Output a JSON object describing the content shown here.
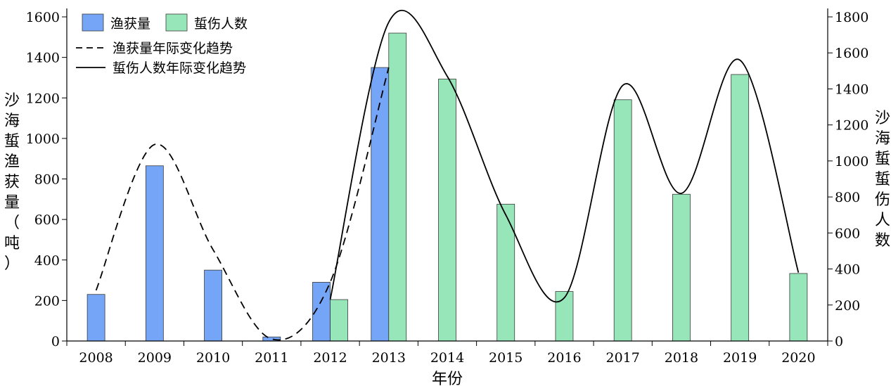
{
  "chart_data": {
    "type": "bar",
    "categories": [
      "2008",
      "2009",
      "2010",
      "2011",
      "2012",
      "2013",
      "2014",
      "2015",
      "2016",
      "2017",
      "2018",
      "2019",
      "2020"
    ],
    "xlabel": "年份",
    "ylabel_left": "沙海蜇渔获量（吨）",
    "ylabel_right": "沙海蜇蜇伤人数",
    "ylim_left": [
      0,
      1600
    ],
    "ylim_right": [
      0,
      1800
    ],
    "yticks_left": [
      0,
      200,
      400,
      600,
      800,
      1000,
      1200,
      1400,
      1600
    ],
    "yticks_right": [
      0,
      200,
      400,
      600,
      800,
      1000,
      1200,
      1400,
      1600,
      1800
    ],
    "grid": false,
    "legend_position": "top-left",
    "series": [
      {
        "name": "渔获量",
        "axis": "left",
        "color": "#74a5f7",
        "values": [
          230,
          865,
          350,
          20,
          290,
          1350,
          null,
          null,
          null,
          null,
          null,
          null,
          null
        ]
      },
      {
        "name": "蜇伤人数",
        "axis": "right",
        "color": "#97e6b9",
        "values": [
          null,
          null,
          null,
          null,
          230,
          1710,
          1455,
          760,
          275,
          1340,
          815,
          1480,
          375
        ]
      }
    ],
    "trend_lines": [
      {
        "name": "渔获量年际变化趋势",
        "axis": "left",
        "style": "dashed",
        "color": "#000000",
        "points": [
          {
            "x": "2008",
            "y": 250
          },
          {
            "x": "2009",
            "y": 970
          },
          {
            "x": "2010",
            "y": 450
          },
          {
            "x": "2011",
            "y": 10
          },
          {
            "x": "2012",
            "y": 290
          },
          {
            "x": "2013",
            "y": 1350
          }
        ]
      },
      {
        "name": "蜇伤人数年际变化趋势",
        "axis": "right",
        "style": "solid",
        "color": "#000000",
        "points": [
          {
            "x": "2012",
            "y": 230
          },
          {
            "x": "2013",
            "y": 1770
          },
          {
            "x": "2014",
            "y": 1470
          },
          {
            "x": "2015",
            "y": 700
          },
          {
            "x": "2016",
            "y": 240
          },
          {
            "x": "2017",
            "y": 1420
          },
          {
            "x": "2018",
            "y": 820
          },
          {
            "x": "2019",
            "y": 1560
          },
          {
            "x": "2020",
            "y": 380
          }
        ]
      }
    ]
  }
}
